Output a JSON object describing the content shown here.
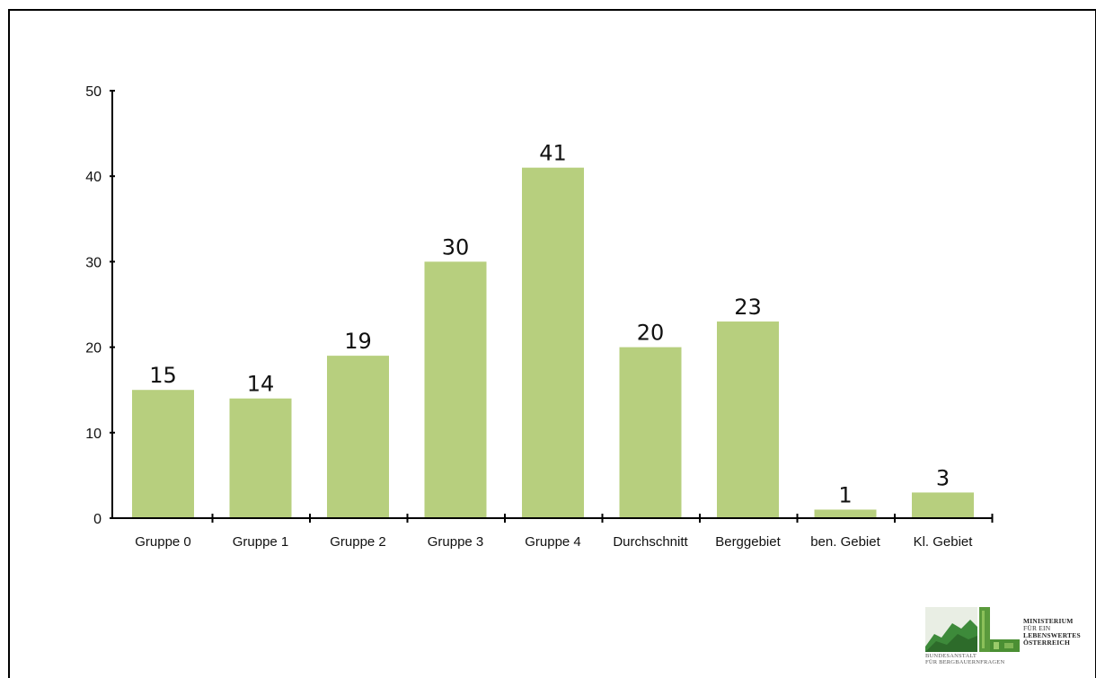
{
  "chart_data": {
    "type": "bar",
    "categories": [
      "Gruppe 0",
      "Gruppe 1",
      "Gruppe 2",
      "Gruppe 3",
      "Gruppe 4",
      "Durchschnitt",
      "Berggebiet",
      "ben. Gebiet",
      "Kl. Gebiet"
    ],
    "values": [
      15,
      14,
      19,
      30,
      41,
      20,
      23,
      1,
      3
    ],
    "data_labels": [
      "15",
      "14",
      "19",
      "30",
      "41",
      "20",
      "23",
      "1",
      "3"
    ],
    "title": "",
    "xlabel": "",
    "ylabel": "",
    "ylim": [
      0,
      50
    ],
    "yticks": [
      0,
      10,
      20,
      30,
      40,
      50
    ],
    "ytick_labels": [
      "0",
      "10",
      "20",
      "30",
      "40",
      "50"
    ],
    "grid": false,
    "bar_color": "#b7cf7e"
  },
  "logo": {
    "line1": "MINISTERIUM",
    "line2": "FÜR EIN",
    "line3": "LEBENSWERTES",
    "line4": "ÖSTERREICH",
    "sub1": "BUNDESANSTALT",
    "sub2": "FÜR BERGBAUERNFRAGEN"
  }
}
